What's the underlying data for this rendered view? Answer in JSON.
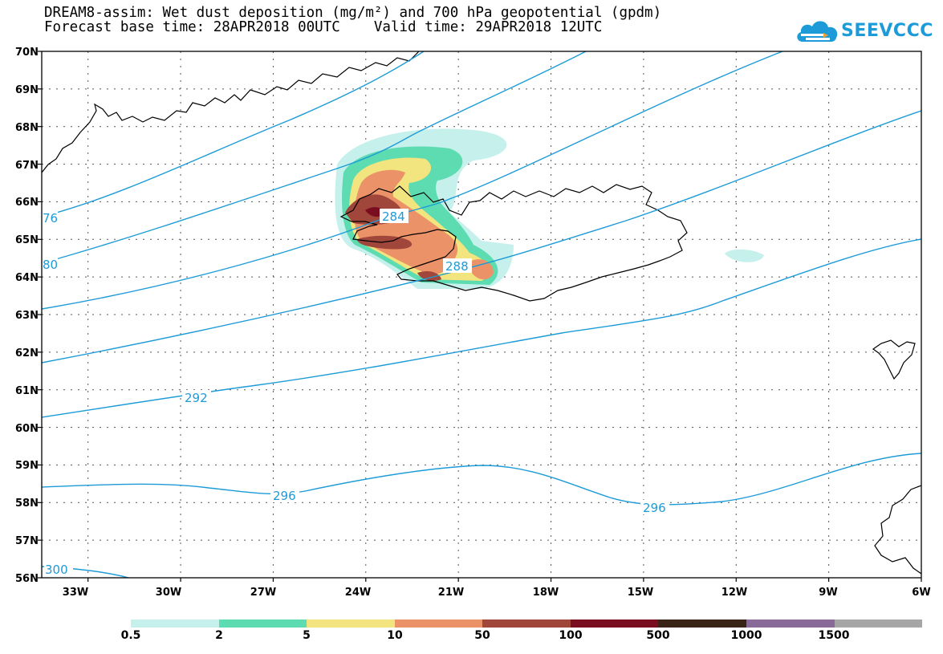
{
  "title": {
    "line1": "DREAM8-assim: Wet dust deposition (mg/m²) and 700 hPa geopotential (gpdm)",
    "line2": "Forecast base time: 28APR2018 00UTC    Valid time: 29APR2018 12UTC"
  },
  "logo": {
    "text": "SEEVCCC",
    "icon": "cloud-icon",
    "color": "#1d9bd8"
  },
  "map": {
    "lat_labels": [
      "70N",
      "69N",
      "68N",
      "67N",
      "66N",
      "65N",
      "64N",
      "63N",
      "62N",
      "61N",
      "60N",
      "59N",
      "58N",
      "57N",
      "56N"
    ],
    "lon_labels": [
      "33W",
      "30W",
      "27W",
      "24W",
      "21W",
      "18W",
      "15W",
      "12W",
      "9W",
      "6W"
    ],
    "lat_range": [
      56,
      70
    ],
    "lon_range": [
      -34.5,
      -6
    ],
    "contour_color": "#1d9bd8",
    "contour_labels": [
      "76",
      "80",
      "284",
      "288",
      "292",
      "296",
      "296",
      "300"
    ]
  },
  "legend": {
    "colors": [
      "#c6f0ec",
      "#5cdcb0",
      "#f2e47e",
      "#eb9268",
      "#a0463a",
      "#7a0e20",
      "#3a2418",
      "#8a6a98",
      "#a6a6a6"
    ],
    "labels": [
      "0.5",
      "2",
      "5",
      "10",
      "50",
      "100",
      "500",
      "1000",
      "1500"
    ]
  }
}
